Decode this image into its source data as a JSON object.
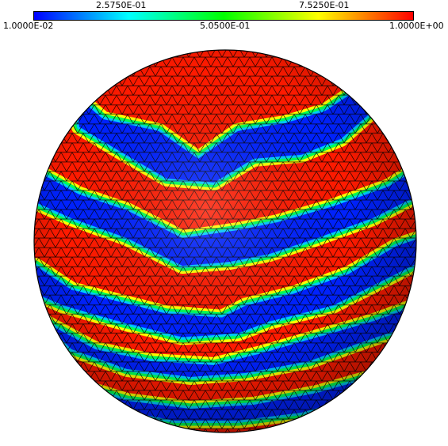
{
  "colorbar": {
    "top_labels": [
      "2.5750E-01",
      "7.5250E-01"
    ],
    "bottom_labels": [
      "1.0000E-02",
      "5.0500E-01",
      "1.0000E+00"
    ],
    "colors": [
      "#0000ff",
      "#00ffff",
      "#00ff00",
      "#ffff00",
      "#ff0000"
    ]
  },
  "sphere": {
    "band_high_color": "#ff1a00",
    "band_low_color": "#0022ff",
    "mesh_color": "#000000"
  }
}
